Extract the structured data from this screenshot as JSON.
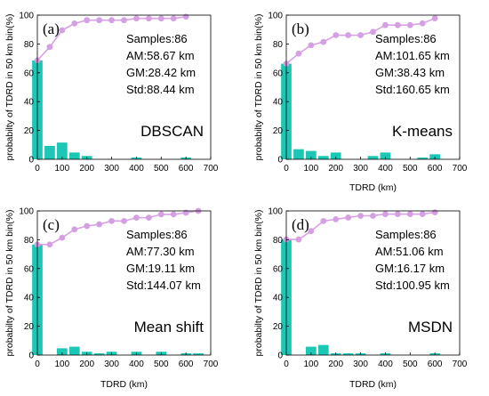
{
  "colors": {
    "bar": "#1cc7b5",
    "line": "#d9a0e6",
    "marker": "#d4a0e3",
    "axis": "#000000"
  },
  "chart_data": [
    {
      "type": "bar",
      "panel": "(a)",
      "method": "DBSCAN",
      "xlabel": "",
      "ylabel": "probabilty of TDRD in 50 km bin(%)",
      "xlim": [
        0,
        700
      ],
      "ylim": [
        0,
        100
      ],
      "xticks": [
        "0",
        "100",
        "200",
        "300",
        "400",
        "500",
        "600",
        "700"
      ],
      "yticks": [
        "0",
        "20",
        "40",
        "60",
        "80",
        "100"
      ],
      "stats": [
        "Samples:86",
        "AM:58.67 km",
        "GM:28.42 km",
        "Std:88.44 km"
      ],
      "bins": {
        "x": [
          0,
          50,
          100,
          150,
          200,
          250,
          300,
          350,
          400,
          450,
          500,
          550,
          600,
          650
        ],
        "values": [
          68.6,
          9.3,
          11.6,
          4.7,
          2.3,
          0,
          0,
          0,
          1.2,
          0,
          0,
          0,
          1.2,
          0
        ]
      },
      "cumulative": {
        "x": [
          0,
          50,
          100,
          150,
          200,
          250,
          300,
          350,
          400,
          450,
          500,
          550,
          600
        ],
        "values": [
          68.6,
          77.9,
          89.5,
          94.2,
          96.5,
          96.5,
          96.5,
          96.5,
          97.7,
          97.7,
          97.7,
          97.7,
          98.9
        ]
      }
    },
    {
      "type": "bar",
      "panel": "(b)",
      "method": "K-means",
      "xlabel": "TDRD (km)",
      "ylabel": "probabilty of TDRD in 50 km bin(%)",
      "xlim": [
        0,
        700
      ],
      "ylim": [
        0,
        100
      ],
      "xticks": [
        "0",
        "100",
        "200",
        "300",
        "400",
        "500",
        "600",
        "700"
      ],
      "yticks": [
        "0",
        "20",
        "40",
        "60",
        "80",
        "100"
      ],
      "stats": [
        "Samples:86",
        "AM:101.65 km",
        "GM:38.43 km",
        "Std:160.65 km"
      ],
      "bins": {
        "x": [
          0,
          50,
          100,
          150,
          200,
          250,
          300,
          350,
          400,
          450,
          500,
          550,
          600,
          650
        ],
        "values": [
          66.3,
          7.0,
          5.8,
          2.3,
          4.7,
          0,
          0,
          2.3,
          4.7,
          0,
          0,
          1.2,
          3.5,
          0
        ]
      },
      "cumulative": {
        "x": [
          0,
          50,
          100,
          150,
          200,
          250,
          300,
          350,
          400,
          450,
          500,
          550,
          600
        ],
        "values": [
          66.3,
          73.3,
          79.1,
          81.4,
          86.1,
          86.1,
          86.1,
          88.4,
          93.1,
          93.1,
          93.1,
          94.3,
          97.8
        ]
      }
    },
    {
      "type": "bar",
      "panel": "(c)",
      "method": "Mean shift",
      "xlabel": "TDRD (km)",
      "ylabel": "probabilty of TDRD in 50 km bin(%)",
      "xlim": [
        0,
        700
      ],
      "ylim": [
        0,
        100
      ],
      "xticks": [
        "0",
        "100",
        "200",
        "300",
        "400",
        "500",
        "600",
        "700"
      ],
      "yticks": [
        "0",
        "20",
        "40",
        "60",
        "80",
        "100"
      ],
      "stats": [
        "Samples:86",
        "AM:77.30 km",
        "GM:19.11 km",
        "Std:144.07 km"
      ],
      "bins": {
        "x": [
          0,
          50,
          100,
          150,
          200,
          250,
          300,
          350,
          400,
          450,
          500,
          550,
          600,
          650
        ],
        "values": [
          76.7,
          0,
          4.7,
          5.8,
          2.3,
          1.2,
          2.3,
          0,
          2.3,
          0,
          2.3,
          0,
          1.2,
          1.2
        ]
      },
      "cumulative": {
        "x": [
          0,
          50,
          100,
          150,
          200,
          250,
          300,
          350,
          400,
          450,
          500,
          550,
          600,
          650
        ],
        "values": [
          76.7,
          76.7,
          81.4,
          87.2,
          89.5,
          90.7,
          93.0,
          93.0,
          95.3,
          95.3,
          97.6,
          97.6,
          98.8,
          100
        ]
      }
    },
    {
      "type": "bar",
      "panel": "(d)",
      "method": "MSDN",
      "xlabel": "TDRD (km)",
      "ylabel": "probabilty of TDRD in 50 km bin(%)",
      "xlim": [
        0,
        700
      ],
      "ylim": [
        0,
        100
      ],
      "xticks": [
        "0",
        "100",
        "200",
        "300",
        "400",
        "500",
        "600",
        "700"
      ],
      "yticks": [
        "0",
        "20",
        "40",
        "60",
        "80",
        "100"
      ],
      "stats": [
        "Samples:86",
        "AM:51.06 km",
        "GM:16.17 km",
        "Std:100.95 km"
      ],
      "bins": {
        "x": [
          0,
          50,
          100,
          150,
          200,
          250,
          300,
          350,
          400,
          450,
          500,
          550,
          600,
          650
        ],
        "values": [
          80.2,
          0,
          5.8,
          7.0,
          1.2,
          1.2,
          1.2,
          0,
          1.2,
          0,
          0,
          0,
          1.2,
          0
        ]
      },
      "cumulative": {
        "x": [
          0,
          50,
          100,
          150,
          200,
          250,
          300,
          350,
          400,
          450,
          500,
          550,
          600
        ],
        "values": [
          80.2,
          80.2,
          86.0,
          93.0,
          94.2,
          95.4,
          96.6,
          96.6,
          97.8,
          97.8,
          97.8,
          97.8,
          99.0
        ]
      }
    }
  ]
}
